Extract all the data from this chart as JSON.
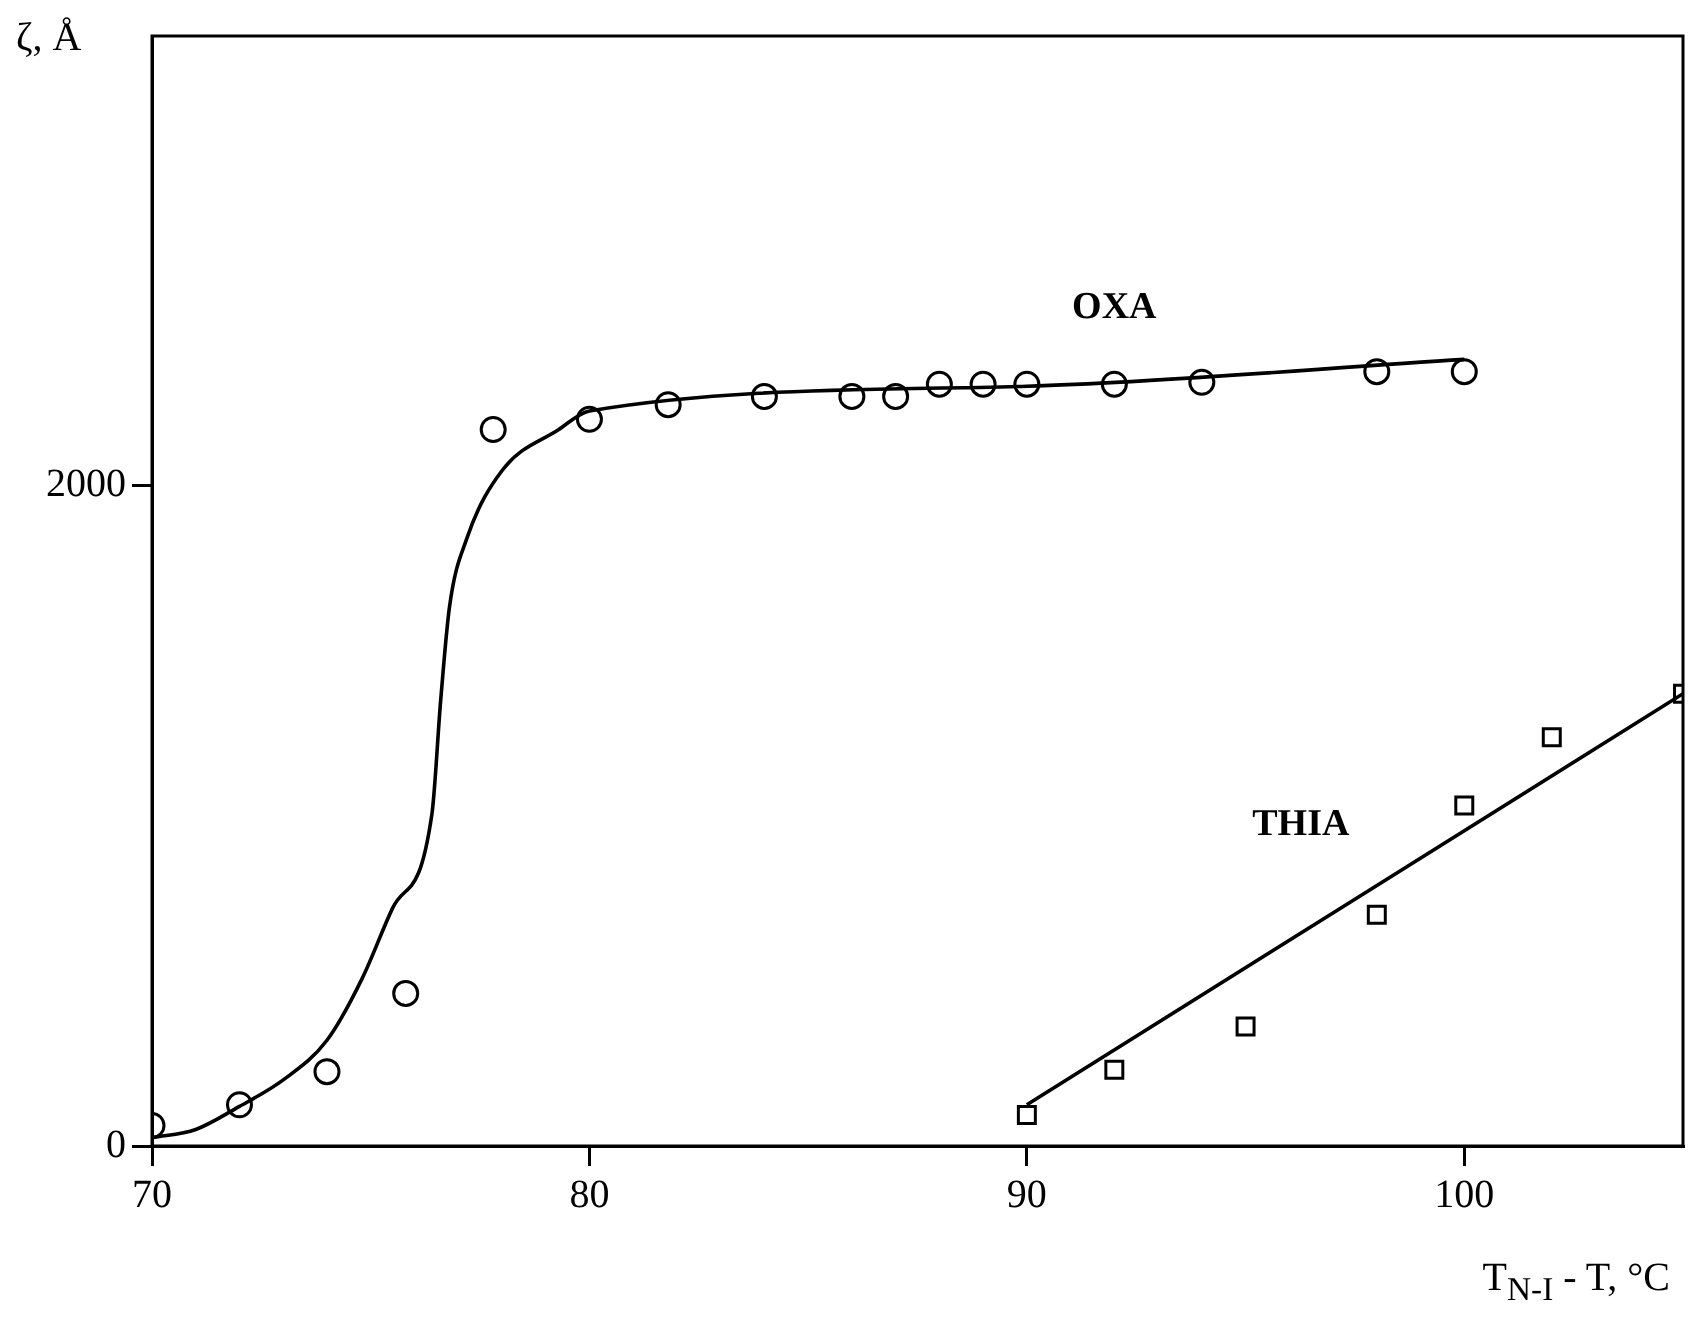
{
  "chart_data": {
    "type": "scatter",
    "xlabel": "T$_{N-I}$ - T, °C",
    "ylabel": "ζ, Å",
    "xlim": [
      70,
      105
    ],
    "xticks": [
      70,
      80,
      90,
      100
    ],
    "ylim": [
      0,
      3360
    ],
    "yticks": [
      0,
      2000
    ],
    "grid": false,
    "legend": false,
    "series": [
      {
        "name": "OXA",
        "marker": "circle",
        "color": "#000000",
        "x": [
          70,
          72,
          74,
          75.8,
          77.8,
          80,
          81.8,
          84,
          86,
          87,
          88,
          89,
          90,
          92,
          94,
          98,
          100
        ],
        "values": [
          62,
          125,
          225,
          462,
          2169,
          2200,
          2244,
          2269,
          2269,
          2269,
          2306,
          2306,
          2306,
          2306,
          2312,
          2344,
          2344
        ]
      },
      {
        "type": "line",
        "marker": "none",
        "color": "#000000",
        "x": [
          70,
          71,
          72,
          73,
          74,
          74.8,
          75.5,
          76.4,
          76.6,
          76.8,
          77.2,
          78,
          79.3,
          80,
          90,
          100
        ],
        "values": [
          25,
          50,
          120,
          200,
          320,
          506,
          720,
          1006,
          1350,
          1631,
          1840,
          2044,
          2169,
          2225,
          2300,
          2381
        ]
      },
      {
        "name": "THIA",
        "marker": "square",
        "color": "#000000",
        "x": [
          90,
          92,
          95,
          98,
          100,
          102,
          105
        ],
        "values": [
          94,
          231,
          362,
          700,
          1031,
          1237,
          1369
        ]
      },
      {
        "type": "line",
        "marker": "none",
        "color": "#000000",
        "x": [
          90,
          105
        ],
        "values": [
          125,
          1369
        ]
      }
    ]
  }
}
